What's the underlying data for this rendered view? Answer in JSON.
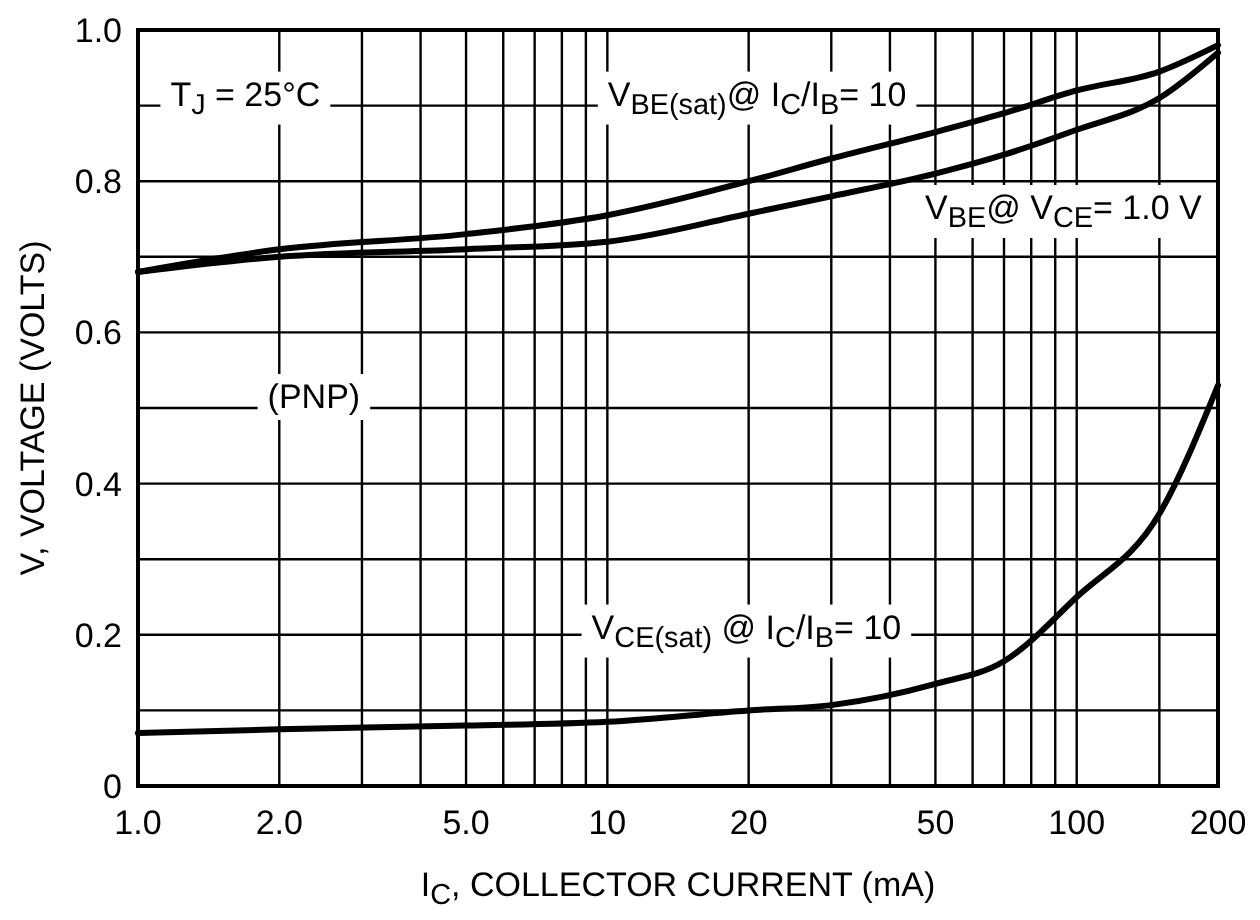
{
  "chart_data": {
    "type": "line",
    "xlabel": "I$_{C}$, COLLECTOR CURRENT (mA)",
    "ylabel": "V, VOLTAGE (VOLTS)",
    "log": "x",
    "xlim": [
      1,
      200
    ],
    "ylim": [
      0,
      1.0
    ],
    "xticks": [
      {
        "value": 1,
        "label": "1.0"
      },
      {
        "value": 2,
        "label": "2.0"
      },
      {
        "value": 3,
        "label": null
      },
      {
        "value": 4,
        "label": null
      },
      {
        "value": 5,
        "label": "5.0"
      },
      {
        "value": 6,
        "label": null
      },
      {
        "value": 7,
        "label": null
      },
      {
        "value": 8,
        "label": null
      },
      {
        "value": 9,
        "label": null
      },
      10,
      20,
      {
        "value": 30,
        "label": null
      },
      {
        "value": 40,
        "label": null
      },
      50,
      {
        "value": 60,
        "label": null
      },
      {
        "value": 70,
        "label": null
      },
      {
        "value": 80,
        "label": null
      },
      {
        "value": 90,
        "label": null
      },
      100,
      {
        "value": 150,
        "label": null
      },
      200
    ],
    "yticks": [
      0,
      {
        "value": 0.1,
        "label": null
      },
      0.2,
      {
        "value": 0.3,
        "label": null
      },
      0.4,
      {
        "value": 0.5,
        "label": null
      },
      0.6,
      {
        "value": 0.7,
        "label": null
      },
      0.8,
      {
        "value": 0.9,
        "label": null
      },
      {
        "value": 1.0,
        "label": "1.0"
      }
    ],
    "grid": true,
    "legend": false,
    "marker": "none",
    "line_style": "solid",
    "x": [
      1,
      2,
      5,
      10,
      20,
      30,
      50,
      70,
      100,
      150,
      200
    ],
    "series": [
      {
        "name": "V$_{BE(sat)}$@ I$_{C}$/I$_{B}$= 10",
        "color": "#000000",
        "values": [
          0.68,
          0.71,
          0.73,
          0.755,
          0.8,
          0.83,
          0.865,
          0.89,
          0.92,
          0.945,
          0.98
        ]
      },
      {
        "name": "V$_{BE}$@ V$_{CE}$= 1.0 V",
        "color": "#000000",
        "values": [
          0.68,
          0.7,
          0.71,
          0.72,
          0.757,
          0.78,
          0.81,
          0.835,
          0.868,
          0.91,
          0.97
        ]
      },
      {
        "name": "V$_{CE(sat)}$ @ I$_{C}$/I$_{B}$= 10",
        "color": "#000000",
        "values": [
          0.07,
          0.075,
          0.08,
          0.085,
          0.1,
          0.107,
          0.135,
          0.165,
          0.25,
          0.36,
          0.53
        ]
      }
    ],
    "annotations": [
      "T$_{J}$ = 25°C",
      "(PNP)"
    ]
  }
}
